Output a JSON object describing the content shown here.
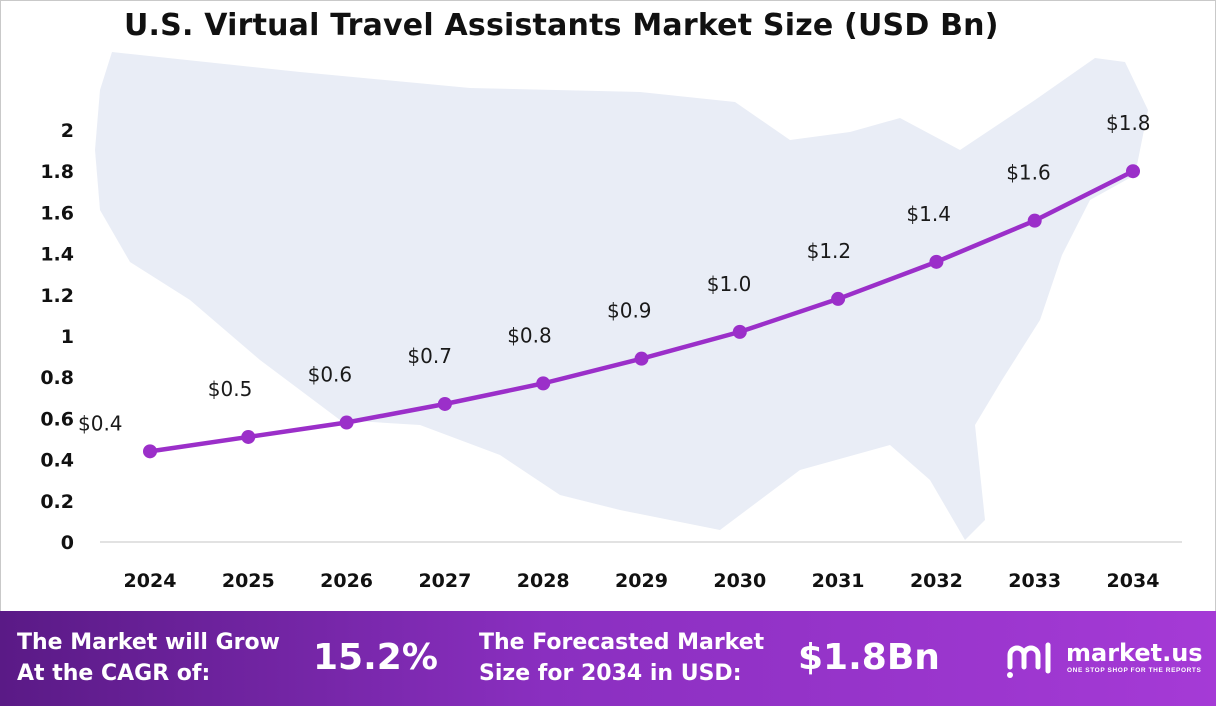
{
  "title": "U.S. Virtual Travel Assistants Market Size (USD Bn)",
  "chart_data": {
    "type": "line",
    "title": "U.S. Virtual Travel Assistants Market Size (USD Bn)",
    "x": [
      "2024",
      "2025",
      "2026",
      "2027",
      "2028",
      "2029",
      "2030",
      "2031",
      "2032",
      "2033",
      "2034"
    ],
    "values": [
      0.44,
      0.51,
      0.58,
      0.67,
      0.77,
      0.89,
      1.02,
      1.18,
      1.36,
      1.56,
      1.8
    ],
    "data_labels": [
      "$0.4",
      "$0.5",
      "$0.6",
      "$0.7",
      "$0.8",
      "$0.9",
      "$1.0",
      "$1.2",
      "$1.4",
      "$1.6",
      "$1.8"
    ],
    "y_ticks": [
      "0",
      "0.2",
      "0.4",
      "0.6",
      "0.8",
      "1",
      "1.2",
      "1.4",
      "1.6",
      "1.8",
      "2"
    ],
    "ylim": [
      0,
      2
    ],
    "grid": false,
    "legend": "none",
    "line_color": "#9b2fc9",
    "background": "map of the United States (light blue-grey)"
  },
  "footer": {
    "cagr_label_line1": "The Market will Grow",
    "cagr_label_line2": "At the CAGR of:",
    "cagr_value": "15.2%",
    "forecast_label_line1": "The Forecasted Market",
    "forecast_label_line2": "Size for 2034 in USD:",
    "forecast_value": "$1.8Bn",
    "brand_name": "market.us",
    "brand_tagline": "ONE STOP SHOP FOR THE REPORTS"
  },
  "colors": {
    "footer_start": "#5a1a86",
    "footer_end": "#a53ad6",
    "map": "#e9edf6"
  }
}
